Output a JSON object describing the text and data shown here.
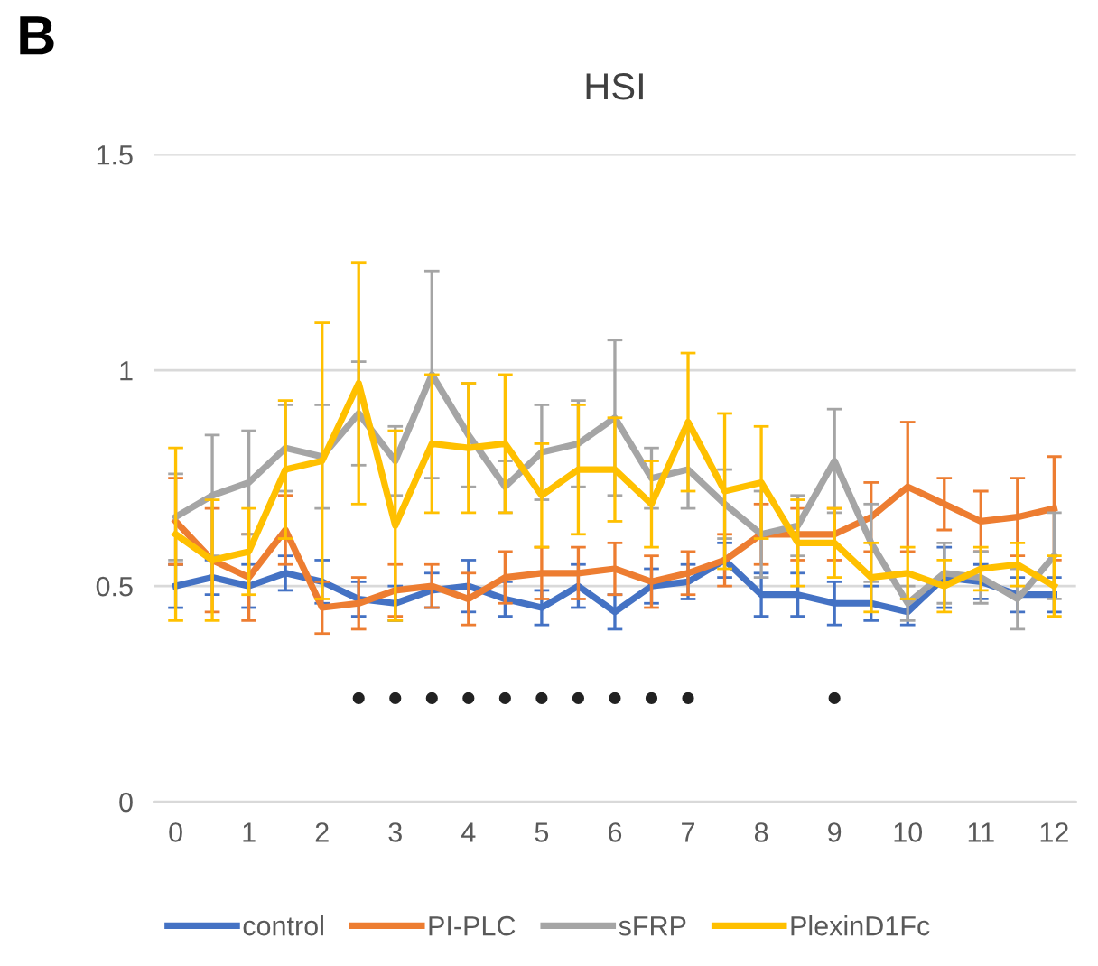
{
  "chart_data": {
    "type": "line",
    "title": "HSI",
    "annotations": [
      "B"
    ],
    "x": [
      0,
      0.5,
      1,
      1.5,
      2,
      2.5,
      3,
      3.5,
      4,
      4.5,
      5,
      5.5,
      6,
      6.5,
      7,
      7.5,
      8,
      8.5,
      9,
      9.5,
      10,
      10.5,
      11,
      11.5,
      12
    ],
    "series": [
      {
        "name": "control",
        "color": "#4472c4",
        "values": [
          0.5,
          0.52,
          0.5,
          0.53,
          0.51,
          0.47,
          0.46,
          0.49,
          0.5,
          0.47,
          0.45,
          0.5,
          0.44,
          0.5,
          0.51,
          0.56,
          0.48,
          0.48,
          0.46,
          0.46,
          0.44,
          0.52,
          0.51,
          0.48,
          0.48
        ],
        "errors": [
          0.05,
          0.04,
          0.05,
          0.04,
          0.05,
          0.04,
          0.04,
          0.04,
          0.06,
          0.04,
          0.04,
          0.05,
          0.04,
          0.04,
          0.04,
          0.04,
          0.05,
          0.05,
          0.05,
          0.04,
          0.03,
          0.07,
          0.04,
          0.04,
          0.04
        ]
      },
      {
        "name": "PI-PLC",
        "color": "#ed7d31",
        "values": [
          0.65,
          0.56,
          0.52,
          0.63,
          0.45,
          0.46,
          0.49,
          0.5,
          0.47,
          0.52,
          0.53,
          0.53,
          0.54,
          0.51,
          0.53,
          0.56,
          0.62,
          0.62,
          0.62,
          0.66,
          0.73,
          0.69,
          0.65,
          0.66,
          0.68
        ],
        "errors": [
          0.1,
          0.12,
          0.1,
          0.08,
          0.06,
          0.06,
          0.06,
          0.05,
          0.06,
          0.06,
          0.06,
          0.06,
          0.06,
          0.06,
          0.05,
          0.06,
          0.07,
          0.06,
          0.06,
          0.08,
          0.15,
          0.06,
          0.07,
          0.09,
          0.12
        ]
      },
      {
        "name": "sFRP",
        "color": "#a5a5a5",
        "values": [
          0.66,
          0.71,
          0.74,
          0.82,
          0.8,
          0.9,
          0.79,
          0.99,
          0.85,
          0.73,
          0.81,
          0.83,
          0.89,
          0.75,
          0.77,
          0.69,
          0.62,
          0.64,
          0.79,
          0.6,
          0.46,
          0.53,
          0.52,
          0.47,
          0.57
        ],
        "errors": [
          0.1,
          0.14,
          0.12,
          0.1,
          0.12,
          0.12,
          0.08,
          0.24,
          0.12,
          0.06,
          0.11,
          0.1,
          0.18,
          0.07,
          0.09,
          0.08,
          0.1,
          0.07,
          0.12,
          0.09,
          0.04,
          0.07,
          0.06,
          0.07,
          0.1
        ]
      },
      {
        "name": "PlexinD1Fc",
        "color": "#ffc000",
        "values": [
          0.62,
          0.56,
          0.58,
          0.77,
          0.79,
          0.97,
          0.64,
          0.83,
          0.82,
          0.83,
          0.71,
          0.77,
          0.77,
          0.69,
          0.88,
          0.72,
          0.74,
          0.6,
          0.6,
          0.52,
          0.53,
          0.5,
          0.54,
          0.55,
          0.5
        ],
        "errors": [
          0.2,
          0.14,
          0.1,
          0.16,
          0.32,
          0.28,
          0.22,
          0.16,
          0.15,
          0.16,
          0.12,
          0.15,
          0.12,
          0.1,
          0.16,
          0.18,
          0.13,
          0.1,
          0.08,
          0.08,
          0.06,
          0.06,
          0.05,
          0.05,
          0.07
        ]
      },
      {
        "type": "scatter",
        "color": "#222222",
        "marker": "circle",
        "x": [
          2.5,
          3,
          3.5,
          4,
          4.5,
          5,
          5.5,
          6,
          6.5,
          7,
          9
        ],
        "values": [
          0.24,
          0.24,
          0.24,
          0.24,
          0.24,
          0.24,
          0.24,
          0.24,
          0.24,
          0.24,
          0.24
        ]
      }
    ],
    "xlim": [
      -0.3,
      12.3
    ],
    "xticks": [
      0,
      1,
      2,
      3,
      4,
      5,
      6,
      7,
      8,
      9,
      10,
      11,
      12
    ],
    "ylim": [
      0,
      1.5
    ],
    "yticks": [
      0,
      0.5,
      1,
      1.5
    ],
    "grid": "y",
    "legend": "bottom",
    "marker": "none",
    "line_style": "solid"
  }
}
